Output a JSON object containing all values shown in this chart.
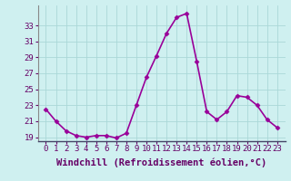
{
  "x": [
    0,
    1,
    2,
    3,
    4,
    5,
    6,
    7,
    8,
    9,
    10,
    11,
    12,
    13,
    14,
    15,
    16,
    17,
    18,
    19,
    20,
    21,
    22,
    23
  ],
  "y": [
    22.5,
    21.0,
    19.8,
    19.2,
    19.0,
    19.2,
    19.2,
    18.9,
    19.5,
    23.0,
    26.5,
    29.2,
    32.0,
    34.0,
    34.5,
    28.5,
    22.2,
    21.2,
    22.2,
    24.2,
    24.0,
    23.0,
    21.2,
    20.2
  ],
  "line_color": "#990099",
  "marker": "D",
  "markersize": 2.5,
  "bg_color": "#cff0f0",
  "grid_color": "#aad8d8",
  "label_color": "#660066",
  "xlabel": "Windchill (Refroidissement éolien,°C)",
  "xlabel_fontsize": 7.5,
  "tick_fontsize": 6.5,
  "ylim": [
    18.5,
    35.5
  ],
  "yticks": [
    19,
    21,
    23,
    25,
    27,
    29,
    31,
    33
  ],
  "xticks": [
    0,
    1,
    2,
    3,
    4,
    5,
    6,
    7,
    8,
    9,
    10,
    11,
    12,
    13,
    14,
    15,
    16,
    17,
    18,
    19,
    20,
    21,
    22,
    23
  ],
  "linewidth": 1.2,
  "axis_color": "#888888"
}
